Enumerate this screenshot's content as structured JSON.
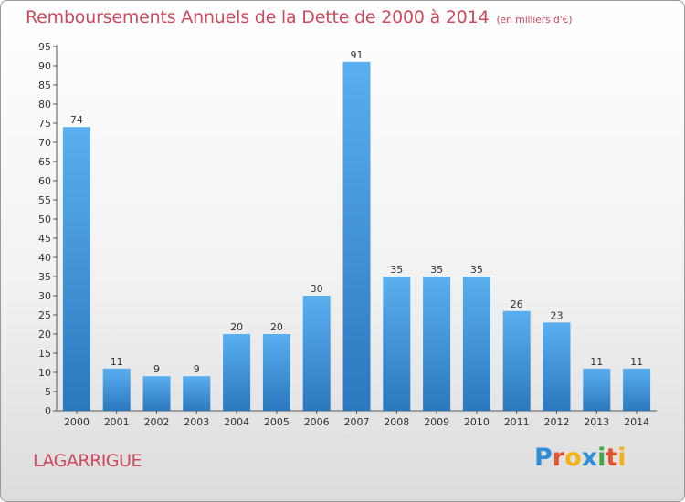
{
  "title": "Remboursements Annuels de la Dette de 2000 à 2014",
  "unit_note": "(en milliers d'€)",
  "place": "LAGARRIGUE",
  "brand": {
    "letters": [
      {
        "char": "P",
        "color": "#2f8fd6"
      },
      {
        "char": "r",
        "color": "#e4512f"
      },
      {
        "char": "o",
        "color": "#f2b21a"
      },
      {
        "char": "x",
        "color": "#2f8fd6"
      },
      {
        "char": "i",
        "color": "#43a843"
      },
      {
        "char": "t",
        "color": "#e4512f"
      },
      {
        "char": "i",
        "color": "#f2b21a"
      }
    ]
  },
  "colors": {
    "bar_light": "#5aaff0",
    "bar_dark": "#2a78be",
    "title": "#cd4a5c"
  },
  "chart_data": {
    "type": "bar",
    "title": "Remboursements Annuels de la Dette de 2000 à 2014",
    "categories": [
      "2000",
      "2001",
      "2002",
      "2003",
      "2004",
      "2005",
      "2006",
      "2007",
      "2008",
      "2009",
      "2010",
      "2011",
      "2012",
      "2013",
      "2014"
    ],
    "values": [
      74,
      11,
      9,
      9,
      20,
      20,
      30,
      91,
      35,
      35,
      35,
      26,
      23,
      11,
      11
    ],
    "data_labels": [
      "74",
      "11",
      "9",
      "9",
      "20",
      "20",
      "30",
      "91",
      "35",
      "35",
      "35",
      "26",
      "23",
      "11",
      "11"
    ],
    "y_ticks": [
      "0",
      "5",
      "10",
      "15",
      "20",
      "25",
      "30",
      "35",
      "40",
      "45",
      "50",
      "55",
      "60",
      "65",
      "70",
      "75",
      "80",
      "85",
      "90",
      "95"
    ],
    "ylim": [
      0,
      95
    ],
    "xlabel": "",
    "ylabel": "",
    "grid": false,
    "legend": "none"
  }
}
